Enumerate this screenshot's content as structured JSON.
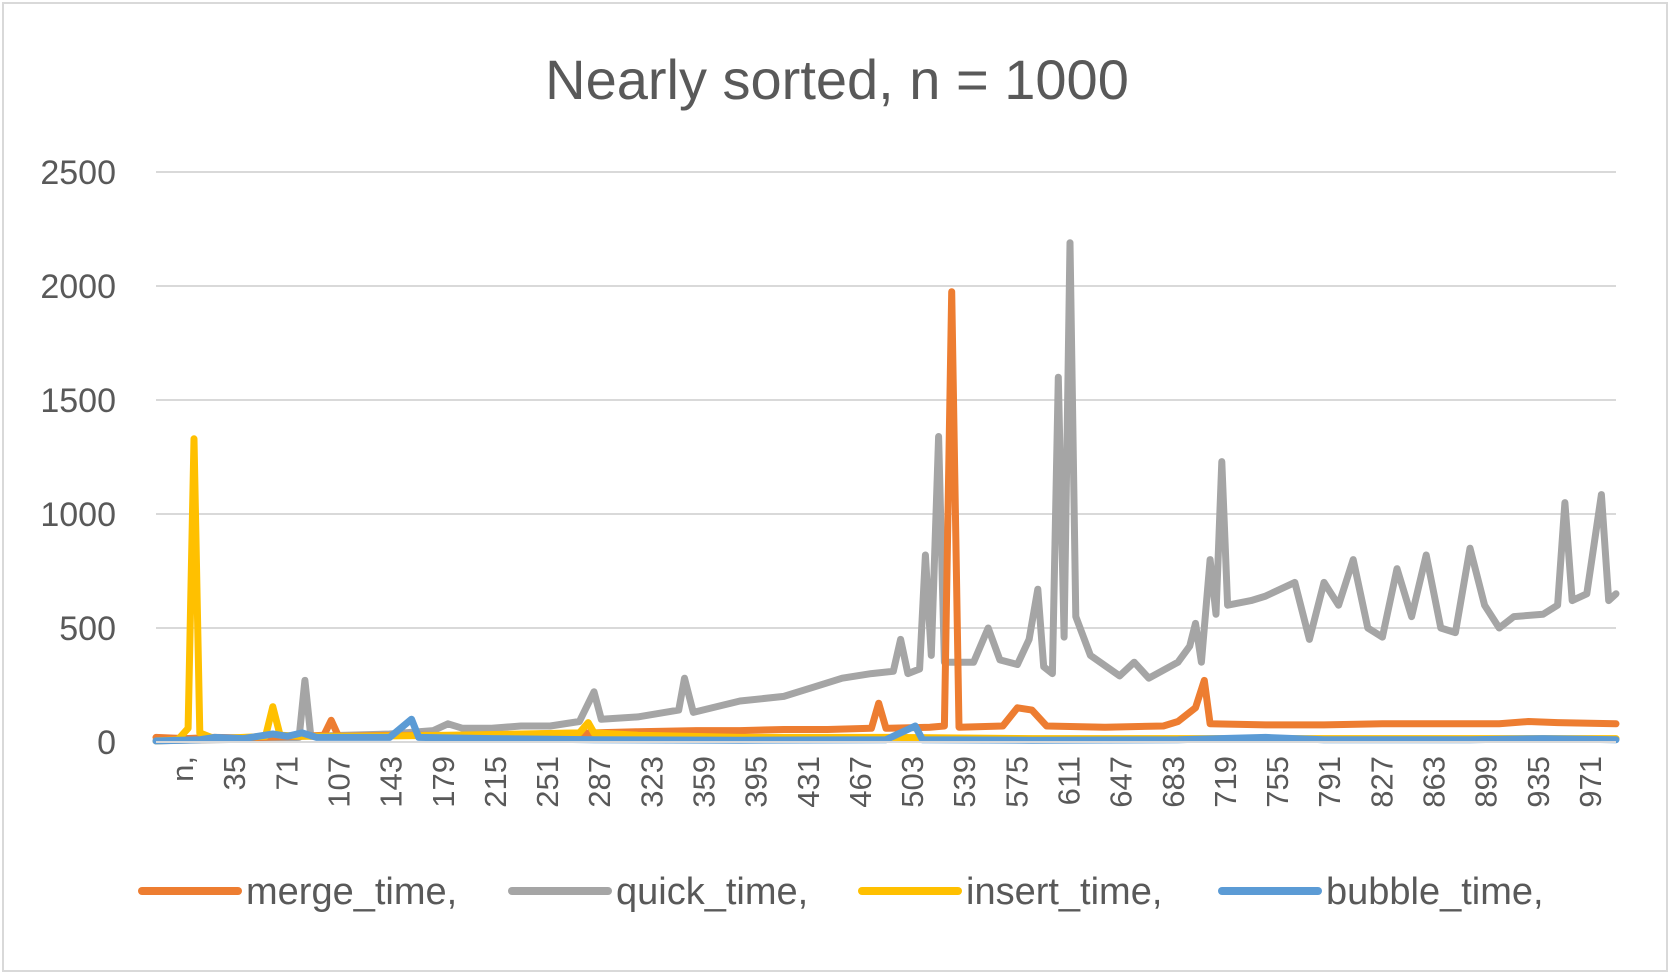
{
  "chart_data": {
    "type": "line",
    "title": "Nearly sorted, n = 1000",
    "xlabel": "",
    "ylabel": "",
    "ylim": [
      0,
      2500
    ],
    "yticks": [
      "0",
      "500",
      "1000",
      "1500",
      "2000",
      "2500"
    ],
    "grid": true,
    "legend_position": "bottom",
    "x_tick_labels": [
      "n,",
      "35",
      "71",
      "107",
      "143",
      "179",
      "215",
      "251",
      "287",
      "323",
      "359",
      "395",
      "431",
      "467",
      "503",
      "539",
      "575",
      "611",
      "647",
      "683",
      "719",
      "755",
      "791",
      "827",
      "863",
      "899",
      "935",
      "971"
    ],
    "x_range": [
      0,
      1000
    ],
    "series": [
      {
        "name": "merge_time,",
        "color": "#ed7d31",
        "points": [
          [
            0,
            20
          ],
          [
            20,
            15
          ],
          [
            40,
            20
          ],
          [
            60,
            18
          ],
          [
            80,
            22
          ],
          [
            100,
            25
          ],
          [
            115,
            30
          ],
          [
            120,
            95
          ],
          [
            125,
            25
          ],
          [
            150,
            28
          ],
          [
            180,
            30
          ],
          [
            200,
            28
          ],
          [
            230,
            32
          ],
          [
            260,
            35
          ],
          [
            300,
            40
          ],
          [
            330,
            45
          ],
          [
            370,
            50
          ],
          [
            400,
            50
          ],
          [
            430,
            55
          ],
          [
            460,
            55
          ],
          [
            490,
            60
          ],
          [
            495,
            170
          ],
          [
            500,
            60
          ],
          [
            530,
            65
          ],
          [
            540,
            70
          ],
          [
            545,
            1975
          ],
          [
            550,
            65
          ],
          [
            580,
            70
          ],
          [
            590,
            150
          ],
          [
            600,
            140
          ],
          [
            610,
            70
          ],
          [
            650,
            65
          ],
          [
            690,
            70
          ],
          [
            700,
            90
          ],
          [
            712,
            150
          ],
          [
            718,
            270
          ],
          [
            722,
            80
          ],
          [
            760,
            75
          ],
          [
            800,
            75
          ],
          [
            840,
            80
          ],
          [
            880,
            80
          ],
          [
            920,
            80
          ],
          [
            940,
            90
          ],
          [
            960,
            85
          ],
          [
            1000,
            80
          ]
        ]
      },
      {
        "name": "quick_time,",
        "color": "#a5a5a5",
        "points": [
          [
            0,
            5
          ],
          [
            20,
            8
          ],
          [
            40,
            10
          ],
          [
            60,
            12
          ],
          [
            80,
            15
          ],
          [
            98,
            20
          ],
          [
            102,
            270
          ],
          [
            106,
            25
          ],
          [
            130,
            30
          ],
          [
            160,
            35
          ],
          [
            190,
            50
          ],
          [
            200,
            80
          ],
          [
            210,
            60
          ],
          [
            230,
            60
          ],
          [
            250,
            70
          ],
          [
            270,
            70
          ],
          [
            290,
            90
          ],
          [
            300,
            220
          ],
          [
            305,
            100
          ],
          [
            330,
            110
          ],
          [
            358,
            140
          ],
          [
            362,
            280
          ],
          [
            368,
            130
          ],
          [
            400,
            180
          ],
          [
            430,
            200
          ],
          [
            450,
            240
          ],
          [
            470,
            280
          ],
          [
            490,
            300
          ],
          [
            505,
            310
          ],
          [
            510,
            450
          ],
          [
            515,
            300
          ],
          [
            523,
            320
          ],
          [
            527,
            820
          ],
          [
            531,
            380
          ],
          [
            536,
            1340
          ],
          [
            540,
            350
          ],
          [
            560,
            350
          ],
          [
            570,
            500
          ],
          [
            578,
            360
          ],
          [
            590,
            340
          ],
          [
            598,
            450
          ],
          [
            604,
            670
          ],
          [
            608,
            330
          ],
          [
            614,
            300
          ],
          [
            618,
            1600
          ],
          [
            622,
            460
          ],
          [
            626,
            2190
          ],
          [
            630,
            550
          ],
          [
            640,
            380
          ],
          [
            660,
            290
          ],
          [
            670,
            350
          ],
          [
            680,
            280
          ],
          [
            700,
            350
          ],
          [
            708,
            420
          ],
          [
            712,
            520
          ],
          [
            716,
            350
          ],
          [
            722,
            800
          ],
          [
            726,
            560
          ],
          [
            730,
            1230
          ],
          [
            734,
            600
          ],
          [
            750,
            620
          ],
          [
            760,
            640
          ],
          [
            780,
            700
          ],
          [
            790,
            450
          ],
          [
            800,
            700
          ],
          [
            810,
            600
          ],
          [
            820,
            800
          ],
          [
            830,
            500
          ],
          [
            840,
            460
          ],
          [
            850,
            760
          ],
          [
            860,
            550
          ],
          [
            870,
            820
          ],
          [
            880,
            500
          ],
          [
            890,
            480
          ],
          [
            900,
            850
          ],
          [
            910,
            600
          ],
          [
            920,
            500
          ],
          [
            930,
            550
          ],
          [
            950,
            560
          ],
          [
            960,
            600
          ],
          [
            965,
            1050
          ],
          [
            970,
            620
          ],
          [
            980,
            650
          ],
          [
            990,
            1085
          ],
          [
            995,
            620
          ],
          [
            1000,
            650
          ]
        ]
      },
      {
        "name": "insert_time,",
        "color": "#ffc000",
        "points": [
          [
            0,
            5
          ],
          [
            15,
            10
          ],
          [
            22,
            60
          ],
          [
            26,
            1330
          ],
          [
            30,
            40
          ],
          [
            40,
            15
          ],
          [
            60,
            20
          ],
          [
            75,
            25
          ],
          [
            80,
            155
          ],
          [
            85,
            30
          ],
          [
            100,
            25
          ],
          [
            140,
            25
          ],
          [
            200,
            30
          ],
          [
            250,
            35
          ],
          [
            290,
            40
          ],
          [
            296,
            85
          ],
          [
            300,
            40
          ],
          [
            330,
            30
          ],
          [
            400,
            20
          ],
          [
            500,
            20
          ],
          [
            600,
            15
          ],
          [
            700,
            15
          ],
          [
            800,
            15
          ],
          [
            900,
            15
          ],
          [
            1000,
            15
          ]
        ]
      },
      {
        "name": "bubble_time,",
        "color": "#5b9bd5",
        "points": [
          [
            0,
            5
          ],
          [
            30,
            10
          ],
          [
            40,
            20
          ],
          [
            60,
            15
          ],
          [
            80,
            35
          ],
          [
            90,
            25
          ],
          [
            100,
            40
          ],
          [
            110,
            20
          ],
          [
            160,
            20
          ],
          [
            175,
            100
          ],
          [
            180,
            20
          ],
          [
            230,
            15
          ],
          [
            300,
            10
          ],
          [
            400,
            8
          ],
          [
            500,
            10
          ],
          [
            520,
            70
          ],
          [
            525,
            10
          ],
          [
            600,
            8
          ],
          [
            700,
            10
          ],
          [
            760,
            20
          ],
          [
            800,
            10
          ],
          [
            900,
            10
          ],
          [
            950,
            15
          ],
          [
            1000,
            10
          ]
        ]
      }
    ]
  }
}
